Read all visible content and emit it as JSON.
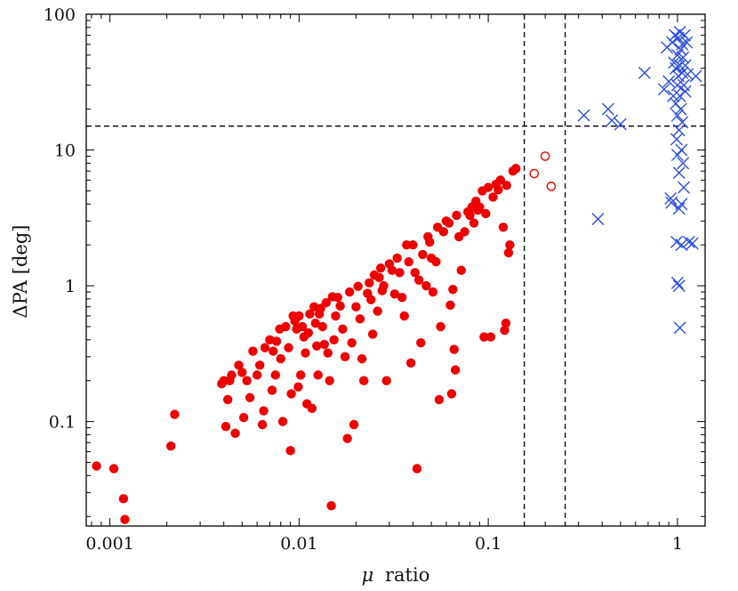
{
  "chart_data": {
    "type": "scatter",
    "title": "",
    "xlabel_symbol": "μ",
    "xlabel_text": "ratio",
    "ylabel": "ΔPA [deg]",
    "x_scale": "log",
    "y_scale": "log",
    "xlim": [
      0.00075,
      1.4
    ],
    "ylim": [
      0.017,
      100
    ],
    "grid": false,
    "legend": "none",
    "x_ticks": [
      {
        "value": 0.001,
        "label": "0.001"
      },
      {
        "value": 0.01,
        "label": "0.01"
      },
      {
        "value": 0.1,
        "label": "0.1"
      },
      {
        "value": 1,
        "label": "1"
      }
    ],
    "y_ticks": [
      {
        "value": 0.1,
        "label": "0.1"
      },
      {
        "value": 1,
        "label": "1"
      },
      {
        "value": 10,
        "label": "10"
      },
      {
        "value": 100,
        "label": "100"
      }
    ],
    "reference_lines": [
      {
        "orientation": "vertical",
        "value": 0.155,
        "style": "dashed"
      },
      {
        "orientation": "vertical",
        "value": 0.255,
        "style": "dashed"
      },
      {
        "orientation": "horizontal",
        "value": 15,
        "style": "dashed"
      }
    ],
    "series": [
      {
        "marker": "filled-circle",
        "color": "#ee0000",
        "points": [
          [
            0.00085,
            0.047
          ],
          [
            0.00105,
            0.045
          ],
          [
            0.00118,
            0.027
          ],
          [
            0.0012,
            0.019
          ],
          [
            0.0021,
            0.066
          ],
          [
            0.0022,
            0.113
          ],
          [
            0.0039,
            0.19
          ],
          [
            0.004,
            0.2
          ],
          [
            0.0041,
            0.092
          ],
          [
            0.0042,
            0.145
          ],
          [
            0.0043,
            0.2
          ],
          [
            0.0044,
            0.22
          ],
          [
            0.0046,
            0.082
          ],
          [
            0.0048,
            0.26
          ],
          [
            0.005,
            0.23
          ],
          [
            0.0051,
            0.107
          ],
          [
            0.0053,
            0.2
          ],
          [
            0.0055,
            0.15
          ],
          [
            0.0057,
            0.33
          ],
          [
            0.006,
            0.22
          ],
          [
            0.0062,
            0.26
          ],
          [
            0.0064,
            0.095
          ],
          [
            0.0065,
            0.12
          ],
          [
            0.0066,
            0.35
          ],
          [
            0.007,
            0.4
          ],
          [
            0.0072,
            0.17
          ],
          [
            0.0073,
            0.33
          ],
          [
            0.0075,
            0.22
          ],
          [
            0.0076,
            0.39
          ],
          [
            0.0079,
            0.48
          ],
          [
            0.008,
            0.29
          ],
          [
            0.0082,
            0.1
          ],
          [
            0.0085,
            0.5
          ],
          [
            0.0088,
            0.35
          ],
          [
            0.009,
            0.061
          ],
          [
            0.0091,
            0.16
          ],
          [
            0.0093,
            0.6
          ],
          [
            0.0095,
            0.55
          ],
          [
            0.0097,
            0.48
          ],
          [
            0.0099,
            0.18
          ],
          [
            0.01,
            0.6
          ],
          [
            0.0102,
            0.22
          ],
          [
            0.0104,
            0.5
          ],
          [
            0.0106,
            0.42
          ],
          [
            0.0108,
            0.32
          ],
          [
            0.011,
            0.135
          ],
          [
            0.0112,
            0.45
          ],
          [
            0.0114,
            0.62
          ],
          [
            0.0117,
            0.125
          ],
          [
            0.012,
            0.7
          ],
          [
            0.0122,
            0.53
          ],
          [
            0.0124,
            0.36
          ],
          [
            0.0126,
            0.22
          ],
          [
            0.0128,
            0.62
          ],
          [
            0.013,
            0.68
          ],
          [
            0.0133,
            0.5
          ],
          [
            0.0136,
            0.37
          ],
          [
            0.0139,
            0.75
          ],
          [
            0.0142,
            0.32
          ],
          [
            0.0145,
            0.2
          ],
          [
            0.0148,
            0.024
          ],
          [
            0.015,
            0.83
          ],
          [
            0.0153,
            0.4
          ],
          [
            0.0156,
            0.6
          ],
          [
            0.016,
            0.82
          ],
          [
            0.0165,
            0.71
          ],
          [
            0.017,
            0.48
          ],
          [
            0.0175,
            0.3
          ],
          [
            0.018,
            0.075
          ],
          [
            0.0185,
            0.9
          ],
          [
            0.019,
            0.38
          ],
          [
            0.0195,
            0.095
          ],
          [
            0.02,
            0.7
          ],
          [
            0.0205,
            0.99
          ],
          [
            0.021,
            0.57
          ],
          [
            0.0215,
            0.29
          ],
          [
            0.022,
            0.2
          ],
          [
            0.023,
            0.88
          ],
          [
            0.0235,
            1.05
          ],
          [
            0.024,
            0.79
          ],
          [
            0.0245,
            0.44
          ],
          [
            0.025,
            1.2
          ],
          [
            0.026,
            0.65
          ],
          [
            0.0265,
            1.15
          ],
          [
            0.027,
            1.35
          ],
          [
            0.0275,
            0.92
          ],
          [
            0.028,
            1.0
          ],
          [
            0.029,
            0.2
          ],
          [
            0.03,
            1.45
          ],
          [
            0.031,
            1.3
          ],
          [
            0.032,
            0.87
          ],
          [
            0.033,
            1.6
          ],
          [
            0.034,
            1.25
          ],
          [
            0.035,
            0.82
          ],
          [
            0.036,
            0.6
          ],
          [
            0.037,
            2.0
          ],
          [
            0.038,
            1.5
          ],
          [
            0.039,
            0.27
          ],
          [
            0.04,
            2.0
          ],
          [
            0.041,
            1.25
          ],
          [
            0.042,
            0.045
          ],
          [
            0.043,
            1.1
          ],
          [
            0.044,
            0.38
          ],
          [
            0.045,
            1.7
          ],
          [
            0.047,
            1.0
          ],
          [
            0.048,
            2.3
          ],
          [
            0.049,
            2.1
          ],
          [
            0.05,
            1.6
          ],
          [
            0.051,
            0.9
          ],
          [
            0.053,
            1.5
          ],
          [
            0.054,
            2.7
          ],
          [
            0.055,
            0.145
          ],
          [
            0.056,
            0.5
          ],
          [
            0.058,
            2.5
          ],
          [
            0.06,
            3.0
          ],
          [
            0.062,
            2.9
          ],
          [
            0.063,
            0.72
          ],
          [
            0.064,
            0.16
          ],
          [
            0.065,
            0.94
          ],
          [
            0.066,
            0.34
          ],
          [
            0.067,
            0.24
          ],
          [
            0.068,
            3.3
          ],
          [
            0.07,
            2.3
          ],
          [
            0.072,
            1.3
          ],
          [
            0.075,
            2.5
          ],
          [
            0.078,
            3.5
          ],
          [
            0.08,
            3.3
          ],
          [
            0.082,
            3.8
          ],
          [
            0.084,
            2.9
          ],
          [
            0.086,
            4.2
          ],
          [
            0.088,
            3.6
          ],
          [
            0.09,
            3.8
          ],
          [
            0.093,
            5.0
          ],
          [
            0.095,
            0.42
          ],
          [
            0.097,
            3.4
          ],
          [
            0.1,
            5.3
          ],
          [
            0.103,
            0.42
          ],
          [
            0.106,
            4.5
          ],
          [
            0.11,
            5.6
          ],
          [
            0.113,
            5.1
          ],
          [
            0.116,
            6.0
          ],
          [
            0.12,
            2.7
          ],
          [
            0.122,
            0.47
          ],
          [
            0.124,
            0.53
          ],
          [
            0.125,
            5.5
          ],
          [
            0.128,
            1.75
          ],
          [
            0.13,
            2.0
          ],
          [
            0.135,
            7.0
          ],
          [
            0.14,
            7.3
          ]
        ]
      },
      {
        "marker": "open-circle",
        "color": "#ee0000",
        "points": [
          [
            0.175,
            6.7
          ],
          [
            0.2,
            9.0
          ],
          [
            0.215,
            5.4
          ]
        ]
      },
      {
        "marker": "cross",
        "color": "#2b4fe0",
        "points": [
          [
            0.32,
            18
          ],
          [
            0.38,
            3.1
          ],
          [
            0.43,
            20
          ],
          [
            0.45,
            16.5
          ],
          [
            0.5,
            15.5
          ],
          [
            0.67,
            37
          ],
          [
            0.85,
            28
          ],
          [
            0.88,
            57
          ],
          [
            0.9,
            32
          ],
          [
            0.92,
            4.4
          ],
          [
            0.93,
            4.1
          ],
          [
            0.94,
            62
          ],
          [
            0.95,
            25
          ],
          [
            0.96,
            44
          ],
          [
            0.97,
            70
          ],
          [
            0.98,
            40
          ],
          [
            0.98,
            22
          ],
          [
            0.99,
            12
          ],
          [
            0.99,
            2.1
          ],
          [
            1.0,
            1.05
          ],
          [
            1.0,
            50
          ],
          [
            1.0,
            30
          ],
          [
            1.0,
            18
          ],
          [
            1.0,
            9.2
          ],
          [
            1.01,
            67
          ],
          [
            1.01,
            35
          ],
          [
            1.02,
            14
          ],
          [
            1.02,
            6.8
          ],
          [
            1.02,
            3.7
          ],
          [
            1.02,
            1.0
          ],
          [
            1.03,
            0.49
          ],
          [
            1.03,
            74
          ],
          [
            1.03,
            42
          ],
          [
            1.03,
            25
          ],
          [
            1.04,
            55
          ],
          [
            1.04,
            20
          ],
          [
            1.05,
            10
          ],
          [
            1.05,
            4.0
          ],
          [
            1.05,
            2.0
          ],
          [
            1.06,
            60
          ],
          [
            1.06,
            37
          ],
          [
            1.06,
            16
          ],
          [
            1.07,
            48
          ],
          [
            1.07,
            8.0
          ],
          [
            1.08,
            30
          ],
          [
            1.08,
            5.3
          ],
          [
            1.09,
            70
          ],
          [
            1.1,
            42
          ],
          [
            1.1,
            27
          ],
          [
            1.12,
            62
          ],
          [
            1.13,
            36
          ],
          [
            1.15,
            2.1
          ],
          [
            1.2,
            2.05
          ],
          [
            1.25,
            35
          ]
        ]
      }
    ]
  }
}
